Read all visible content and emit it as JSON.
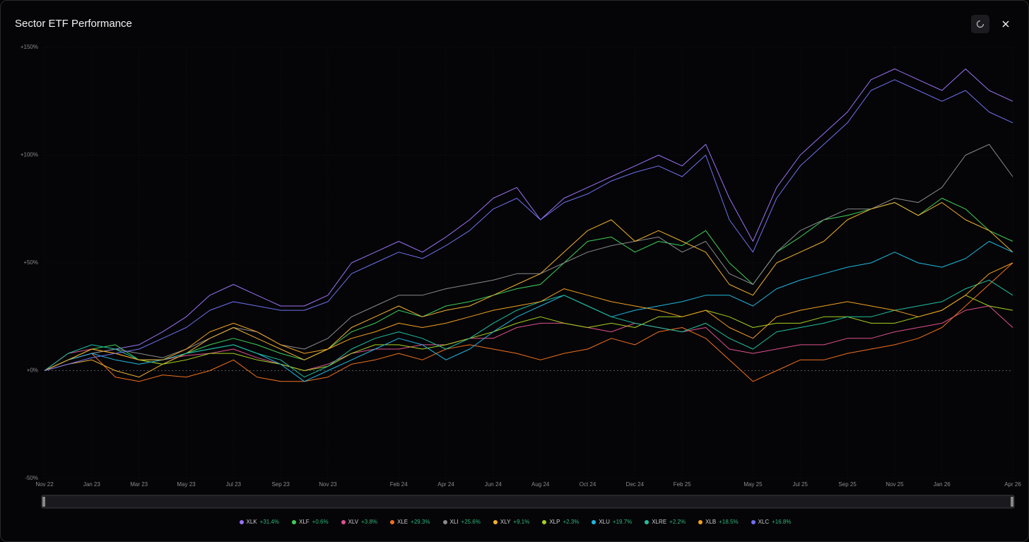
{
  "chart_data": {
    "type": "line",
    "title": "Sector ETF Performance",
    "categories": [
      "Nov 22",
      null,
      "Jan 23",
      null,
      "Mar 23",
      null,
      "May 23",
      null,
      "Jul 23",
      null,
      "Sep 23",
      null,
      "Nov 23",
      null,
      null,
      "Feb 24",
      null,
      "Apr 24",
      null,
      "Jun 24",
      null,
      "Aug 24",
      null,
      "Oct 24",
      null,
      "Dec 24",
      null,
      "Feb 25",
      null,
      null,
      "May 25",
      null,
      "Jul 25",
      null,
      "Sep 25",
      null,
      "Nov 25",
      null,
      "Jan 26",
      null,
      null,
      "Apr 26"
    ],
    "ylim": [
      -50,
      150
    ],
    "yticks": [
      {
        "value": 150,
        "label": "+150%"
      },
      {
        "value": 100,
        "label": "+100%"
      },
      {
        "value": 50,
        "label": "+50%"
      },
      {
        "value": 0,
        "label": "+0%"
      },
      {
        "value": -50,
        "label": "-50%"
      }
    ],
    "grid": true,
    "series": [
      {
        "name": "XLK",
        "change": "+31.4%",
        "color": "#9a72f5",
        "values": [
          0,
          5,
          8,
          10,
          12,
          18,
          25,
          35,
          40,
          35,
          30,
          30,
          35,
          50,
          55,
          60,
          55,
          62,
          70,
          80,
          85,
          70,
          80,
          85,
          90,
          95,
          100,
          95,
          105,
          80,
          60,
          85,
          100,
          110,
          120,
          135,
          140,
          135,
          130,
          140,
          130,
          125
        ]
      },
      {
        "name": "XLF",
        "change": "+0.6%",
        "color": "#3ecf5a",
        "values": [
          0,
          5,
          10,
          12,
          5,
          3,
          8,
          12,
          15,
          12,
          8,
          5,
          10,
          18,
          22,
          28,
          25,
          30,
          32,
          35,
          38,
          40,
          50,
          60,
          62,
          55,
          60,
          58,
          65,
          50,
          40,
          55,
          62,
          70,
          72,
          75,
          78,
          72,
          80,
          75,
          65,
          60
        ]
      },
      {
        "name": "XLV",
        "change": "+3.8%",
        "color": "#e0508f",
        "values": [
          0,
          8,
          10,
          8,
          5,
          5,
          7,
          8,
          10,
          6,
          3,
          0,
          3,
          8,
          10,
          10,
          12,
          12,
          15,
          15,
          20,
          22,
          22,
          20,
          18,
          22,
          20,
          18,
          20,
          10,
          8,
          10,
          12,
          12,
          15,
          15,
          18,
          20,
          22,
          28,
          30,
          20
        ]
      },
      {
        "name": "XLE",
        "change": "+29.3%",
        "color": "#f07020",
        "values": [
          0,
          5,
          8,
          -3,
          -5,
          -2,
          -3,
          0,
          5,
          -3,
          -5,
          -5,
          -3,
          3,
          5,
          8,
          5,
          10,
          12,
          10,
          8,
          5,
          8,
          10,
          15,
          12,
          18,
          20,
          15,
          5,
          -5,
          0,
          5,
          5,
          8,
          10,
          12,
          15,
          20,
          30,
          40,
          50
        ]
      },
      {
        "name": "XLI",
        "change": "+25.6%",
        "color": "#8a8a8e",
        "values": [
          0,
          5,
          8,
          10,
          8,
          6,
          10,
          15,
          20,
          18,
          12,
          10,
          15,
          25,
          30,
          35,
          35,
          38,
          40,
          42,
          45,
          45,
          50,
          55,
          58,
          60,
          62,
          55,
          60,
          45,
          40,
          55,
          65,
          70,
          75,
          75,
          80,
          78,
          85,
          100,
          105,
          90
        ]
      },
      {
        "name": "XLY",
        "change": "+9.1%",
        "color": "#f0b030",
        "values": [
          0,
          3,
          5,
          0,
          -3,
          3,
          8,
          15,
          20,
          15,
          10,
          5,
          10,
          20,
          25,
          30,
          25,
          28,
          30,
          35,
          40,
          45,
          55,
          65,
          70,
          60,
          65,
          60,
          55,
          40,
          35,
          50,
          55,
          60,
          70,
          75,
          78,
          72,
          78,
          70,
          65,
          55
        ]
      },
      {
        "name": "XLP",
        "change": "+2.3%",
        "color": "#a8d020",
        "values": [
          0,
          5,
          10,
          8,
          5,
          3,
          5,
          8,
          8,
          5,
          3,
          0,
          2,
          8,
          12,
          12,
          10,
          12,
          15,
          18,
          22,
          25,
          22,
          20,
          22,
          20,
          25,
          25,
          28,
          25,
          20,
          22,
          22,
          25,
          25,
          22,
          22,
          25,
          28,
          35,
          30,
          28
        ]
      },
      {
        "name": "XLU",
        "change": "+19.7%",
        "color": "#20b8e0",
        "values": [
          0,
          5,
          8,
          5,
          3,
          5,
          8,
          10,
          12,
          8,
          3,
          -5,
          0,
          5,
          10,
          15,
          12,
          5,
          10,
          18,
          25,
          30,
          35,
          30,
          25,
          28,
          30,
          32,
          35,
          35,
          30,
          38,
          42,
          45,
          48,
          50,
          55,
          50,
          48,
          52,
          60,
          55
        ]
      },
      {
        "name": "XLRE",
        "change": "+2.2%",
        "color": "#20c0a0",
        "values": [
          0,
          8,
          12,
          10,
          5,
          5,
          8,
          10,
          12,
          8,
          5,
          -3,
          2,
          10,
          15,
          18,
          15,
          10,
          15,
          22,
          28,
          32,
          35,
          30,
          25,
          22,
          20,
          18,
          22,
          15,
          10,
          18,
          20,
          22,
          25,
          25,
          28,
          30,
          32,
          38,
          42,
          35
        ]
      },
      {
        "name": "XLB",
        "change": "+18.5%",
        "color": "#f0a020",
        "values": [
          0,
          5,
          10,
          8,
          5,
          5,
          10,
          18,
          22,
          18,
          12,
          8,
          10,
          15,
          18,
          22,
          20,
          22,
          25,
          28,
          30,
          32,
          38,
          35,
          32,
          30,
          28,
          25,
          28,
          20,
          15,
          25,
          28,
          30,
          32,
          30,
          28,
          25,
          28,
          35,
          45,
          50
        ]
      },
      {
        "name": "XLC",
        "change": "+16.8%",
        "color": "#7070f0",
        "values": [
          0,
          3,
          6,
          8,
          10,
          15,
          20,
          28,
          32,
          30,
          28,
          28,
          32,
          45,
          50,
          55,
          52,
          58,
          65,
          75,
          80,
          70,
          78,
          82,
          88,
          92,
          95,
          90,
          100,
          70,
          55,
          80,
          95,
          105,
          115,
          130,
          135,
          130,
          125,
          130,
          120,
          115
        ]
      }
    ]
  }
}
